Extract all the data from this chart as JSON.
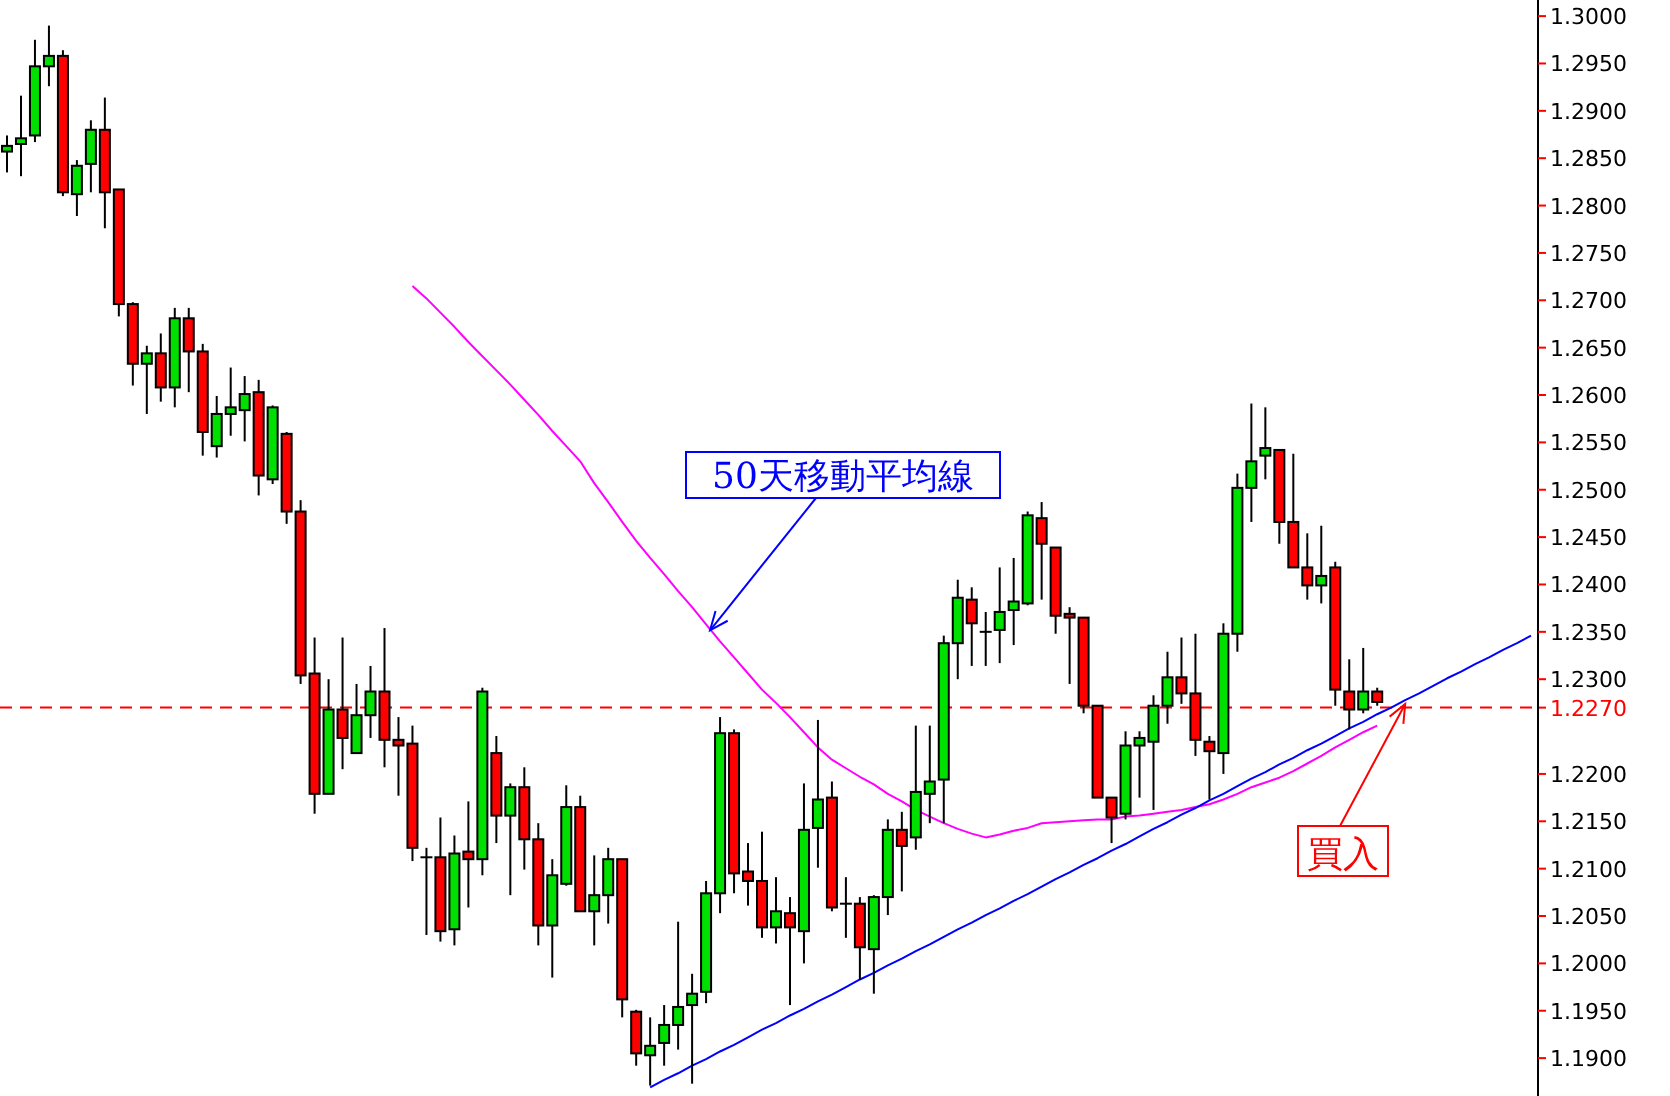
{
  "chart_data": {
    "type": "candlestick",
    "tick_labels": "y",
    "categories": [
      null,
      null,
      null,
      null,
      null,
      null,
      null,
      null,
      null,
      null,
      null,
      null,
      null,
      null,
      null,
      null,
      null,
      null,
      null,
      null,
      null,
      null,
      null,
      null,
      null,
      null,
      null,
      null,
      null,
      null,
      null,
      null,
      null,
      null,
      null,
      null,
      null,
      null,
      null,
      null,
      null,
      null,
      null,
      null,
      null,
      null,
      null,
      null,
      null,
      null,
      null,
      null,
      null,
      null,
      null,
      null,
      null,
      null,
      null,
      null,
      null,
      null,
      null,
      null,
      null,
      null,
      null,
      null,
      null,
      null,
      null,
      null,
      null,
      null,
      null,
      null,
      null,
      null,
      null,
      null,
      null,
      null,
      null,
      null,
      null,
      null,
      null,
      null,
      null,
      null,
      null,
      null,
      null,
      null,
      null,
      null,
      null,
      null,
      null,
      null,
      null,
      null,
      null,
      null,
      null,
      null,
      null,
      null,
      null,
      null
    ],
    "ohlc": [
      [
        1.2857,
        1.2874,
        1.2835,
        1.2863
      ],
      [
        1.2865,
        1.2916,
        1.2831,
        1.2871
      ],
      [
        1.2874,
        1.2975,
        1.2867,
        1.2947
      ],
      [
        1.2947,
        1.299,
        1.2926,
        1.2958
      ],
      [
        1.2958,
        1.2964,
        1.281,
        1.2814
      ],
      [
        1.2812,
        1.2848,
        1.2789,
        1.2842
      ],
      [
        1.2844,
        1.289,
        1.2814,
        1.288
      ],
      [
        1.288,
        1.2914,
        1.2776,
        1.2814
      ],
      [
        1.2817,
        1.2817,
        1.2683,
        1.2696
      ],
      [
        1.2696,
        1.2698,
        1.261,
        1.2633
      ],
      [
        1.2633,
        1.2652,
        1.258,
        1.2644
      ],
      [
        1.2644,
        1.2665,
        1.2593,
        1.2608
      ],
      [
        1.2608,
        1.2692,
        1.2587,
        1.2681
      ],
      [
        1.2681,
        1.2692,
        1.2603,
        1.2646
      ],
      [
        1.2646,
        1.2654,
        1.2536,
        1.2561
      ],
      [
        1.2546,
        1.2599,
        1.2534,
        1.258
      ],
      [
        1.258,
        1.2629,
        1.2557,
        1.2587
      ],
      [
        1.2584,
        1.262,
        1.2551,
        1.2601
      ],
      [
        1.2603,
        1.2616,
        1.2494,
        1.2515
      ],
      [
        1.2511,
        1.2589,
        1.2506,
        1.2587
      ],
      [
        1.2559,
        1.2561,
        1.2464,
        1.2477
      ],
      [
        1.2477,
        1.2489,
        1.2295,
        1.2304
      ],
      [
        1.2306,
        1.2344,
        1.2158,
        1.2179
      ],
      [
        1.2179,
        1.23,
        1.2179,
        1.2268
      ],
      [
        1.2268,
        1.2344,
        1.2205,
        1.2238
      ],
      [
        1.2222,
        1.2295,
        1.2222,
        1.2262
      ],
      [
        1.2262,
        1.2314,
        1.2238,
        1.2287
      ],
      [
        1.2287,
        1.2354,
        1.2207,
        1.2236
      ],
      [
        1.2236,
        1.226,
        1.2177,
        1.223
      ],
      [
        1.2232,
        1.2251,
        1.2108,
        1.2122
      ],
      [
        1.2112,
        1.2122,
        1.203,
        1.2112
      ],
      [
        1.2112,
        1.2154,
        1.2023,
        1.2034
      ],
      [
        1.2036,
        1.2135,
        1.2019,
        1.2116
      ],
      [
        1.2118,
        1.2171,
        1.2059,
        1.211
      ],
      [
        1.211,
        1.2291,
        1.2093,
        1.2287
      ],
      [
        1.2222,
        1.224,
        1.2127,
        1.2156
      ],
      [
        1.2156,
        1.219,
        1.2072,
        1.2186
      ],
      [
        1.2186,
        1.2207,
        1.2099,
        1.2131
      ],
      [
        1.2131,
        1.2148,
        1.2019,
        1.204
      ],
      [
        1.204,
        1.211,
        1.1985,
        1.2093
      ],
      [
        1.2084,
        1.2188,
        1.2082,
        1.2165
      ],
      [
        1.2165,
        1.2177,
        1.2055,
        1.2055
      ],
      [
        1.2055,
        1.2114,
        1.2019,
        1.2072
      ],
      [
        1.2072,
        1.2122,
        1.2042,
        1.211
      ],
      [
        1.211,
        1.211,
        1.1943,
        1.1962
      ],
      [
        1.1949,
        1.1951,
        1.1892,
        1.1905
      ],
      [
        1.1903,
        1.1943,
        1.1871,
        1.1913
      ],
      [
        1.1916,
        1.1956,
        1.1892,
        1.1935
      ],
      [
        1.1935,
        1.2044,
        1.1909,
        1.1954
      ],
      [
        1.1956,
        1.1989,
        1.1873,
        1.1968
      ],
      [
        1.197,
        1.2087,
        1.1958,
        1.2074
      ],
      [
        1.2074,
        1.226,
        1.2053,
        1.2243
      ],
      [
        1.2243,
        1.2247,
        1.2074,
        1.2095
      ],
      [
        1.2097,
        1.2127,
        1.2061,
        1.2087
      ],
      [
        1.2087,
        1.2139,
        1.2027,
        1.2038
      ],
      [
        1.2038,
        1.2091,
        1.2021,
        1.2055
      ],
      [
        1.2053,
        1.207,
        1.1956,
        1.2038
      ],
      [
        1.2034,
        1.219,
        1.2,
        1.2141
      ],
      [
        1.2143,
        1.2257,
        1.2101,
        1.2173
      ],
      [
        1.2175,
        1.2192,
        1.2055,
        1.2059
      ],
      [
        1.2063,
        1.2091,
        1.2027,
        1.2063
      ],
      [
        1.2063,
        1.207,
        1.1983,
        1.2017
      ],
      [
        1.2015,
        1.2072,
        1.1968,
        1.207
      ],
      [
        1.207,
        1.2152,
        1.2051,
        1.2141
      ],
      [
        1.2141,
        1.216,
        1.2076,
        1.2124
      ],
      [
        1.2133,
        1.2251,
        1.212,
        1.2181
      ],
      [
        1.2179,
        1.2251,
        1.2148,
        1.2192
      ],
      [
        1.2194,
        1.2346,
        1.2148,
        1.2338
      ],
      [
        1.2338,
        1.2405,
        1.23,
        1.2386
      ],
      [
        1.2384,
        1.2397,
        1.2314,
        1.2359
      ],
      [
        1.235,
        1.2371,
        1.2314,
        1.235
      ],
      [
        1.2352,
        1.2418,
        1.2317,
        1.2371
      ],
      [
        1.2373,
        1.2428,
        1.2336,
        1.2382
      ],
      [
        1.238,
        1.2477,
        1.2378,
        1.2473
      ],
      [
        1.247,
        1.2487,
        1.2384,
        1.2443
      ],
      [
        1.2439,
        1.2439,
        1.2348,
        1.2367
      ],
      [
        1.2369,
        1.2376,
        1.2295,
        1.2365
      ],
      [
        1.2365,
        1.2365,
        1.2264,
        1.2272
      ],
      [
        1.2272,
        1.2272,
        1.2175,
        1.2175
      ],
      [
        1.2175,
        1.2175,
        1.2127,
        1.2154
      ],
      [
        1.2158,
        1.2245,
        1.2152,
        1.223
      ],
      [
        1.223,
        1.2245,
        1.2175,
        1.2238
      ],
      [
        1.2234,
        1.2283,
        1.2162,
        1.2272
      ],
      [
        1.2272,
        1.2329,
        1.2253,
        1.2302
      ],
      [
        1.2302,
        1.2344,
        1.2274,
        1.2285
      ],
      [
        1.2285,
        1.2348,
        1.2219,
        1.2236
      ],
      [
        1.2234,
        1.224,
        1.2173,
        1.2224
      ],
      [
        1.2222,
        1.2359,
        1.22,
        1.2348
      ],
      [
        1.2348,
        1.2517,
        1.2329,
        1.2502
      ],
      [
        1.2502,
        1.2591,
        1.2466,
        1.253
      ],
      [
        1.2536,
        1.2587,
        1.2511,
        1.2544
      ],
      [
        1.2542,
        1.2542,
        1.2443,
        1.2466
      ],
      [
        1.2466,
        1.2538,
        1.2418,
        1.2418
      ],
      [
        1.2418,
        1.2454,
        1.2384,
        1.2399
      ],
      [
        1.2399,
        1.2462,
        1.238,
        1.2409
      ],
      [
        1.2418,
        1.2424,
        1.2272,
        1.2289
      ],
      [
        1.2287,
        1.2321,
        1.2247,
        1.2268
      ],
      [
        1.2268,
        1.2333,
        1.2264,
        1.2287
      ],
      [
        1.2287,
        1.2291,
        1.2272,
        1.2276
      ],
      null,
      null,
      null,
      null,
      null,
      null,
      null,
      null,
      null,
      null,
      null
    ],
    "colors": [
      "#00e000",
      "#00e000",
      "#00e000",
      "#00e000",
      "#ff0000",
      "#00e000",
      "#00e000",
      "#ff0000",
      "#ff0000",
      "#ff0000",
      "#00e000",
      "#ff0000",
      "#00e000",
      "#ff0000",
      "#ff0000",
      "#00e000",
      "#00e000",
      "#00e000",
      "#ff0000",
      "#00e000",
      "#ff0000",
      "#ff0000",
      "#ff0000",
      "#00e000",
      "#ff0000",
      "#00e000",
      "#00e000",
      "#ff0000",
      "#ff0000",
      "#ff0000",
      "#000000",
      "#ff0000",
      "#00e000",
      "#ff0000",
      "#00e000",
      "#ff0000",
      "#00e000",
      "#ff0000",
      "#ff0000",
      "#00e000",
      "#00e000",
      "#ff0000",
      "#00e000",
      "#00e000",
      "#ff0000",
      "#ff0000",
      "#00e000",
      "#00e000",
      "#00e000",
      "#00e000",
      "#00e000",
      "#00e000",
      "#ff0000",
      "#ff0000",
      "#ff0000",
      "#00e000",
      "#ff0000",
      "#00e000",
      "#00e000",
      "#ff0000",
      "#000000",
      "#ff0000",
      "#00e000",
      "#00e000",
      "#ff0000",
      "#00e000",
      "#00e000",
      "#00e000",
      "#00e000",
      "#ff0000",
      "#000000",
      "#00e000",
      "#00e000",
      "#00e000",
      "#ff0000",
      "#ff0000",
      "#ff0000",
      "#ff0000",
      "#ff0000",
      "#ff0000",
      "#00e000",
      "#00e000",
      "#00e000",
      "#00e000",
      "#ff0000",
      "#ff0000",
      "#ff0000",
      "#00e000",
      "#00e000",
      "#00e000",
      "#00e000",
      "#ff0000",
      "#ff0000",
      "#ff0000",
      "#00e000",
      "#ff0000",
      "#ff0000",
      "#00e000",
      "#ff0000",
      null,
      null,
      null,
      null,
      null,
      null,
      null,
      null,
      null,
      null,
      null
    ],
    "series": [
      {
        "type": "line",
        "color": "#ff00ff",
        "values": [
          null,
          null,
          null,
          null,
          null,
          null,
          null,
          null,
          null,
          null,
          null,
          null,
          null,
          null,
          null,
          null,
          null,
          null,
          null,
          null,
          null,
          null,
          null,
          null,
          null,
          null,
          null,
          null,
          null,
          1.2715,
          1.2702,
          1.2687,
          1.2672,
          1.2656,
          1.2641,
          1.2626,
          1.2611,
          1.2595,
          1.2579,
          1.2562,
          1.2546,
          1.253,
          1.2507,
          1.2487,
          1.2466,
          1.2446,
          1.2428,
          1.2411,
          1.2393,
          1.2376,
          1.2358,
          1.234,
          1.2323,
          1.2306,
          1.2289,
          1.2275,
          1.226,
          1.2244,
          1.2228,
          1.2215,
          1.2206,
          1.2197,
          1.2189,
          1.2179,
          1.2171,
          1.2162,
          1.2155,
          1.2148,
          1.2142,
          1.2137,
          1.2133,
          1.2136,
          1.214,
          1.2143,
          1.2148,
          1.2149,
          1.215,
          1.2151,
          1.2152,
          1.2152,
          1.2155,
          1.2156,
          1.2158,
          1.216,
          1.2162,
          1.2165,
          1.2168,
          1.2173,
          1.2179,
          1.2186,
          1.2191,
          1.2196,
          1.2203,
          1.2211,
          1.2219,
          1.2228,
          1.2236,
          1.2244,
          1.2251,
          null,
          null,
          null,
          null,
          null,
          null,
          null,
          null,
          null,
          null,
          null
        ]
      },
      {
        "type": "line",
        "color": "#0000ff",
        "values": [
          null,
          null,
          null,
          null,
          null,
          null,
          null,
          null,
          null,
          null,
          null,
          null,
          null,
          null,
          null,
          null,
          null,
          null,
          null,
          null,
          null,
          null,
          null,
          null,
          null,
          null,
          null,
          null,
          null,
          null,
          null,
          null,
          null,
          null,
          null,
          null,
          null,
          null,
          null,
          null,
          null,
          null,
          null,
          null,
          null,
          null,
          1.1869,
          1.1877,
          1.1884,
          1.1892,
          1.1899,
          1.1907,
          1.1914,
          1.1922,
          1.193,
          1.1937,
          1.1945,
          1.1952,
          1.196,
          1.1967,
          1.1975,
          1.1983,
          1.199,
          1.1998,
          1.2005,
          1.2013,
          1.202,
          1.2028,
          1.2036,
          1.2043,
          1.2051,
          1.2058,
          1.2066,
          1.2073,
          1.2081,
          1.2089,
          1.2096,
          1.2104,
          1.2111,
          1.2119,
          1.2126,
          1.2134,
          1.2142,
          1.2149,
          1.2157,
          1.2164,
          1.2172,
          1.2179,
          1.2187,
          1.2195,
          1.2202,
          1.221,
          1.2217,
          1.2225,
          1.2232,
          1.224,
          1.2248,
          1.2255,
          1.2263,
          1.227,
          1.2278,
          1.2285,
          1.2293,
          1.2301,
          1.2308,
          1.2316,
          1.2323,
          1.2331,
          1.2338,
          1.2346
        ]
      }
    ],
    "ylim": [
      1.186,
      1.3017
    ],
    "yticks": [
      {
        "value": 1.19,
        "label": "1.1900"
      },
      {
        "value": 1.195,
        "label": "1.1950"
      },
      {
        "value": 1.2,
        "label": "1.2000"
      },
      {
        "value": 1.205,
        "label": "1.2050"
      },
      {
        "value": 1.21,
        "label": "1.2100"
      },
      {
        "value": 1.215,
        "label": "1.2150"
      },
      {
        "value": 1.22,
        "label": "1.2200"
      },
      {
        "value": 1.23,
        "label": "1.2300"
      },
      {
        "value": 1.235,
        "label": "1.2350"
      },
      {
        "value": 1.24,
        "label": "1.2400"
      },
      {
        "value": 1.245,
        "label": "1.2450"
      },
      {
        "value": 1.25,
        "label": "1.2500"
      },
      {
        "value": 1.255,
        "label": "1.2550"
      },
      {
        "value": 1.26,
        "label": "1.2600"
      },
      {
        "value": 1.265,
        "label": "1.2650"
      },
      {
        "value": 1.27,
        "label": "1.2700"
      },
      {
        "value": 1.275,
        "label": "1.2750"
      },
      {
        "value": 1.28,
        "label": "1.2800"
      },
      {
        "value": 1.285,
        "label": "1.2850"
      },
      {
        "value": 1.29,
        "label": "1.2900"
      },
      {
        "value": 1.295,
        "label": "1.2950"
      },
      {
        "value": 1.3,
        "label": "1.3000"
      }
    ],
    "ref_lines": [
      {
        "axis": "y",
        "value": 1.227,
        "label": "1.2270",
        "color": "#ff0000",
        "line_style": "dashed"
      }
    ],
    "annotations": [
      "50天移動平均線",
      "買入"
    ]
  }
}
